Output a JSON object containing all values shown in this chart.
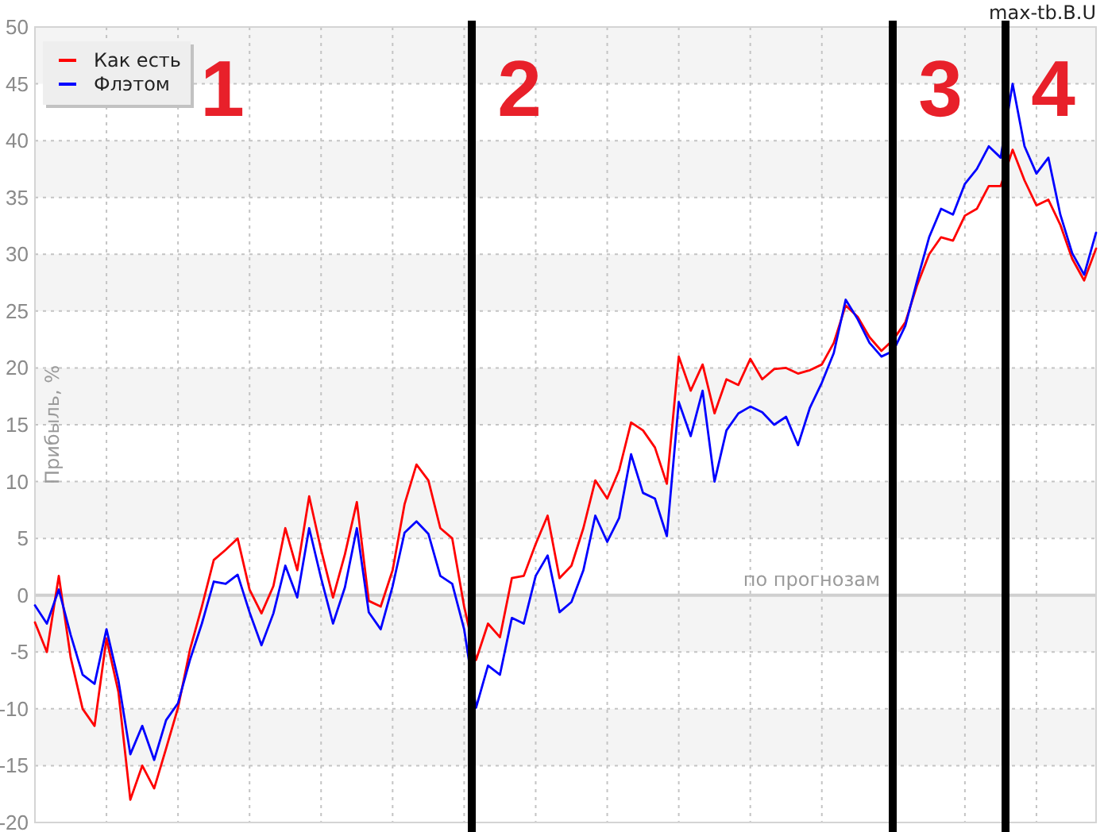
{
  "chart_data": {
    "type": "line",
    "title": "max-tb.B.U",
    "xlabel": "по прогнозам",
    "ylabel": "Прибыль, %",
    "categories": [
      null,
      null,
      null,
      null,
      null,
      null,
      null,
      null,
      null,
      null,
      null,
      null,
      null,
      null,
      null,
      null,
      null,
      null,
      null,
      null,
      null,
      null,
      null,
      null,
      null,
      null,
      null,
      null,
      null,
      null,
      null,
      null,
      null,
      null,
      null,
      null,
      null,
      null,
      null,
      null,
      null,
      null,
      null,
      null,
      null,
      null,
      null,
      null,
      null,
      null,
      null,
      null,
      null,
      null,
      null,
      null,
      null,
      null,
      null,
      null,
      null,
      null,
      null,
      null,
      null,
      null,
      null,
      null,
      null,
      null,
      null,
      null,
      null,
      null,
      null,
      null,
      null,
      null,
      null,
      null,
      null,
      null,
      null,
      null,
      null,
      null,
      null,
      null,
      null,
      null
    ],
    "series": [
      {
        "name": "Как есть",
        "color": "#ff0000",
        "values": [
          -2.4,
          -5.0,
          1.7,
          -5.5,
          -10.0,
          -11.5,
          -3.8,
          -8.5,
          -18.0,
          -15.0,
          -17.0,
          -13.5,
          -9.9,
          -4.8,
          -1.0,
          3.1,
          4.0,
          5.0,
          0.5,
          -1.6,
          0.8,
          5.9,
          2.2,
          8.7,
          4.0,
          -0.2,
          3.6,
          8.2,
          -0.5,
          -1.0,
          2.2,
          8.0,
          11.5,
          10.1,
          5.9,
          5.0,
          -1.0,
          -5.7,
          -2.5,
          -3.7,
          1.5,
          1.7,
          4.5,
          7.0,
          1.5,
          2.6,
          5.9,
          10.1,
          8.5,
          11.0,
          15.2,
          14.5,
          13.0,
          9.8,
          21.0,
          18.0,
          20.3,
          16.0,
          19.0,
          18.5,
          20.8,
          19.0,
          19.9,
          20.0,
          19.5,
          19.8,
          20.3,
          22.2,
          25.5,
          24.5,
          22.7,
          21.5,
          22.5,
          24.0,
          27.3,
          30.0,
          31.5,
          31.2,
          33.4,
          34.0,
          36.0,
          36.0,
          39.2,
          36.5,
          34.3,
          34.8,
          32.6,
          29.6,
          27.7,
          30.5
        ]
      },
      {
        "name": "Флэтом",
        "color": "#0000ff",
        "values": [
          -0.9,
          -2.5,
          0.5,
          -3.5,
          -7.0,
          -7.8,
          -3.0,
          -7.5,
          -14.0,
          -11.5,
          -14.5,
          -11.0,
          -9.5,
          -5.7,
          -2.5,
          1.2,
          1.0,
          1.8,
          -1.5,
          -4.4,
          -1.6,
          2.6,
          -0.2,
          5.9,
          1.5,
          -2.5,
          0.7,
          5.9,
          -1.5,
          -3.0,
          0.8,
          5.5,
          6.5,
          5.4,
          1.7,
          1.0,
          -3.0,
          -9.9,
          -6.2,
          -7.0,
          -2.0,
          -2.5,
          1.7,
          3.5,
          -1.5,
          -0.6,
          2.2,
          7.0,
          4.7,
          6.8,
          12.4,
          9.0,
          8.5,
          5.2,
          17.0,
          14.0,
          18.0,
          10.0,
          14.5,
          16.0,
          16.6,
          16.1,
          15.0,
          15.7,
          13.2,
          16.5,
          18.7,
          21.3,
          26.0,
          24.3,
          22.2,
          21.0,
          21.5,
          23.7,
          27.7,
          31.5,
          34.0,
          33.5,
          36.2,
          37.5,
          39.5,
          38.5,
          45.0,
          39.5,
          37.1,
          38.5,
          33.5,
          30.1,
          28.2,
          31.9
        ]
      }
    ],
    "ylim": [
      -20,
      50
    ],
    "yticks": [
      -20,
      -15,
      -10,
      -5,
      0,
      5,
      10,
      15,
      20,
      25,
      30,
      35,
      40,
      45,
      50
    ],
    "grid": true,
    "legend": "top left",
    "tick_labels": "y",
    "annotations": [
      "1",
      "2",
      "3",
      "4"
    ]
  }
}
